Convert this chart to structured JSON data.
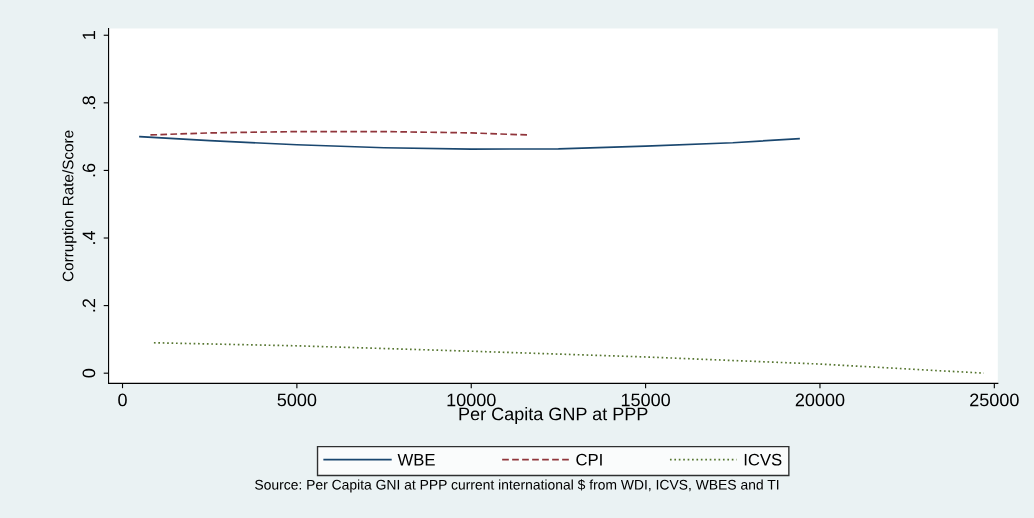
{
  "chart_data": {
    "type": "line",
    "xlabel": "Per Capita GNP at PPP",
    "ylabel": "Corruption Rate/Score",
    "xlim": [
      -400,
      25100
    ],
    "ylim": [
      -0.03,
      1.02
    ],
    "xticks": [
      0,
      5000,
      10000,
      15000,
      20000,
      25000
    ],
    "yticks": [
      0,
      {
        "value": 0.2,
        "label": ".2"
      },
      {
        "value": 0.4,
        "label": ".4"
      },
      {
        "value": 0.6,
        "label": ".6"
      },
      {
        "value": 0.8,
        "label": ".8"
      },
      1
    ],
    "grid": false,
    "legend": "bottom",
    "marker": "none",
    "series": [
      {
        "name": "WBE",
        "color": "#1a476f",
        "line_style": "solid",
        "x": [
          500,
          2500,
          5000,
          7500,
          10000,
          12500,
          15000,
          17500,
          19400
        ],
        "values": [
          0.7,
          0.688,
          0.676,
          0.667,
          0.663,
          0.664,
          0.672,
          0.682,
          0.694
        ]
      },
      {
        "name": "CPI",
        "color": "#90353b",
        "line_style": "dashed",
        "x": [
          800,
          2500,
          5000,
          7500,
          10000,
          11600
        ],
        "values": [
          0.705,
          0.711,
          0.715,
          0.715,
          0.711,
          0.705
        ]
      },
      {
        "name": "ICVS",
        "color": "#55752f",
        "line_style": "dotted",
        "x": [
          900,
          5000,
          10000,
          15000,
          20000,
          24700
        ],
        "values": [
          0.09,
          0.081,
          0.065,
          0.048,
          0.027,
          0.0
        ]
      }
    ],
    "annotations": [
      "Source: Per Capita GNI at PPP current international $ from WDI, ICVS, WBES and TI"
    ]
  }
}
